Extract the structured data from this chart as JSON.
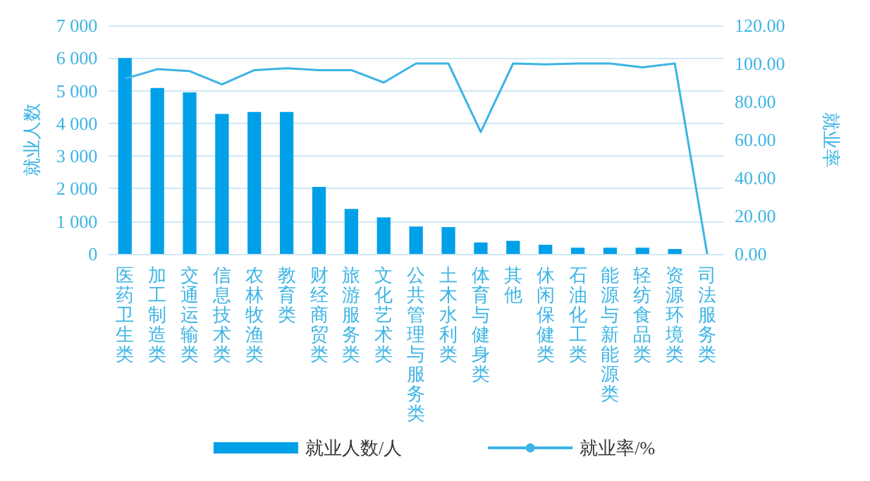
{
  "chart_data": {
    "type": "bar",
    "ylabel": "就业人数",
    "y2label": "就业率",
    "categories": [
      "医药卫生类",
      "加工制造类",
      "交通运输类",
      "信息技术类",
      "农林牧渔类",
      "教育类",
      "财经商贸类",
      "旅游服务类",
      "文化艺术类",
      "公共管理与服务类",
      "土木水利类",
      "体育与健身类",
      "其他",
      "休闲保健类",
      "石油化工类",
      "能源与新能源类",
      "轻纺食品类",
      "资源环境类",
      "司法服务类"
    ],
    "series": [
      {
        "name": "就业人数/人",
        "color": "#00a0e9",
        "values": [
          6000,
          5080,
          4950,
          4290,
          4350,
          4350,
          2050,
          1380,
          1120,
          840,
          820,
          350,
          400,
          280,
          190,
          190,
          190,
          150,
          0
        ]
      },
      {
        "name": "就业率/%",
        "type": "line",
        "axis": "y2",
        "color": "#3cb4e5",
        "values": [
          92,
          97,
          96,
          89,
          96.5,
          97.5,
          96.5,
          96.5,
          90,
          100,
          100,
          64,
          100,
          99.5,
          100,
          100,
          98,
          100,
          0
        ]
      }
    ],
    "ylim": [
      0,
      7000
    ],
    "yticks": [
      0,
      {
        "value": 1000,
        "label": "1 000"
      },
      {
        "value": 2000,
        "label": "2 000"
      },
      {
        "value": 3000,
        "label": "3 000"
      },
      {
        "value": 4000,
        "label": "4 000"
      },
      {
        "value": 5000,
        "label": "5 000"
      },
      {
        "value": 6000,
        "label": "6 000"
      },
      {
        "value": 7000,
        "label": "7 000"
      }
    ],
    "y2lim": [
      0,
      120
    ],
    "y2ticks": [
      {
        "value": 0,
        "label": "0.00"
      },
      {
        "value": 20,
        "label": "20.00"
      },
      {
        "value": 40,
        "label": "40.00"
      },
      {
        "value": 60,
        "label": "60.00"
      },
      {
        "value": 80,
        "label": "80.00"
      },
      {
        "value": 100,
        "label": "100.00"
      },
      {
        "value": 120,
        "label": "120.00"
      }
    ],
    "grid": "y",
    "legend": "bottom",
    "marker": "none",
    "line_style": "solid"
  }
}
